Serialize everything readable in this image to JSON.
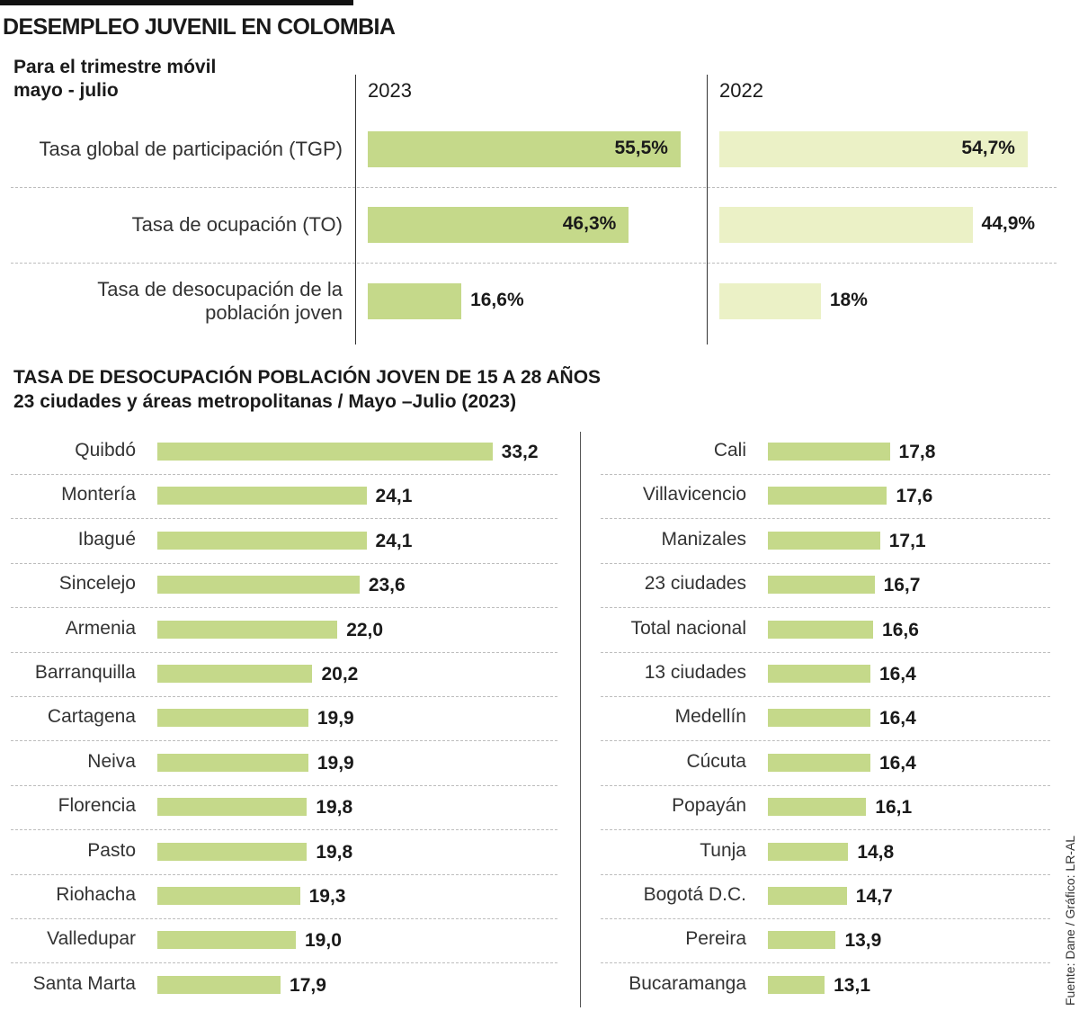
{
  "title": "DESEMPLEO JUVENIL EN COLOMBIA",
  "source": "Fuente: Dane / Gráfico: LR-AL",
  "colors": {
    "bar_2023": "#c5d98a",
    "bar_2022": "#ebf1c6",
    "text": "#1a1a1a"
  },
  "chart_data": [
    {
      "type": "bar",
      "orientation": "horizontal",
      "title": "Para el trimestre móvil mayo - julio",
      "title_lines": [
        "Para el trimestre móvil",
        "mayo - julio"
      ],
      "categories": [
        "Tasa global de participación (TGP)",
        "Tasa de ocupación (TO)",
        "Tasa de desocupación de la población joven"
      ],
      "category_lines": [
        [
          "Tasa global de participación (TGP)"
        ],
        [
          "Tasa de ocupación (TO)"
        ],
        [
          "Tasa de desocupación de la",
          "población joven"
        ]
      ],
      "series": [
        {
          "name": "2023",
          "values": [
            55.5,
            46.3,
            16.6
          ],
          "labels": [
            "55,5%",
            "46,3%",
            "16,6%"
          ]
        },
        {
          "name": "2022",
          "values": [
            54.7,
            44.9,
            18
          ],
          "labels": [
            "54,7%",
            "44,9%",
            "18%"
          ]
        }
      ],
      "unit": "%"
    },
    {
      "type": "bar",
      "orientation": "horizontal",
      "title": "TASA DE DESOCUPACIÓN POBLACIÓN JOVEN DE 15 A 28 AÑOS",
      "subtitle": "23 ciudades y áreas metropolitanas / Mayo –Julio (2023)",
      "categories": [
        "Quibdó",
        "Montería",
        "Ibagué",
        "Sincelejo",
        "Armenia",
        "Barranquilla",
        "Cartagena",
        "Neiva",
        "Florencia",
        "Pasto",
        "Riohacha",
        "Valledupar",
        "Santa Marta",
        "Cali",
        "Villavicencio",
        "Manizales",
        "23 ciudades",
        "Total nacional",
        "13 ciudades",
        "Medellín",
        "Cúcuta",
        "Popayán",
        "Tunja",
        "Bogotá D.C.",
        "Pereira",
        "Bucaramanga"
      ],
      "values": [
        33.2,
        24.1,
        24.1,
        23.6,
        22.0,
        20.2,
        19.9,
        19.9,
        19.8,
        19.8,
        19.3,
        19.0,
        17.9,
        17.8,
        17.6,
        17.1,
        16.7,
        16.6,
        16.4,
        16.4,
        16.4,
        16.1,
        14.8,
        14.7,
        13.9,
        13.1
      ],
      "labels": [
        "33,2",
        "24,1",
        "24,1",
        "23,6",
        "22,0",
        "20,2",
        "19,9",
        "19,9",
        "19,8",
        "19,8",
        "19,3",
        "19,0",
        "17,9",
        "17,8",
        "17,6",
        "17,1",
        "16,7",
        "16,6",
        "16,4",
        "16,4",
        "16,4",
        "16,1",
        "14,8",
        "14,7",
        "13,9",
        "13,1"
      ]
    }
  ]
}
